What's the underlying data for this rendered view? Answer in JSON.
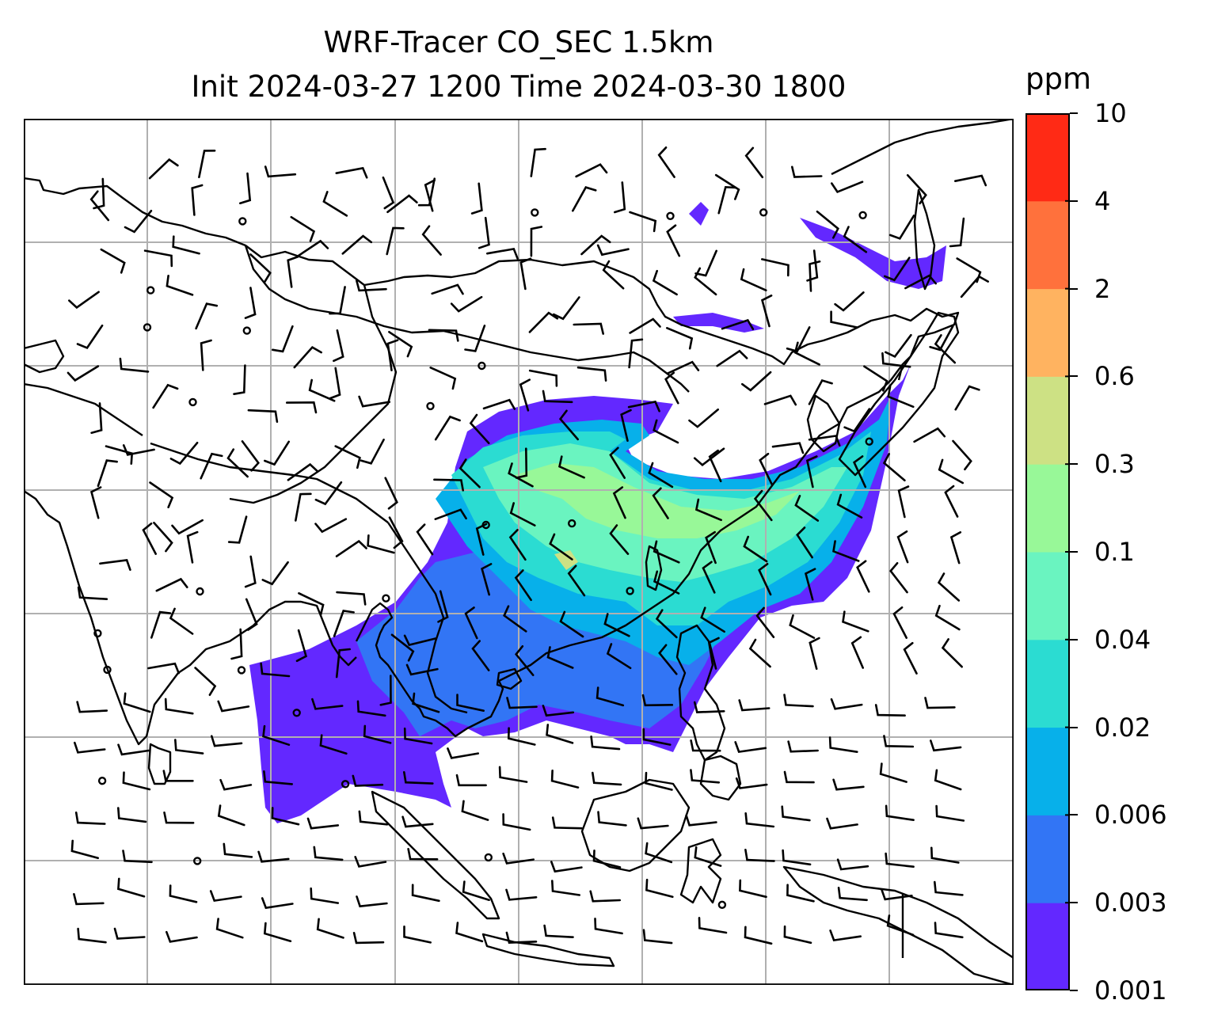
{
  "title": {
    "line1": "WRF-Tracer CO_SEC 1.5km",
    "line2": "Init 2024-03-27 1200 Time 2024-03-30 1800"
  },
  "colorbar": {
    "unit": "ppm",
    "levels": [
      "0.001",
      "0.003",
      "0.006",
      "0.02",
      "0.04",
      "0.1",
      "0.3",
      "0.6",
      "2",
      "4",
      "10"
    ],
    "colors": [
      "#6328ff",
      "#3275f5",
      "#07b0ea",
      "#2bdcd2",
      "#6af4c0",
      "#98f898",
      "#cde184",
      "#ffb360",
      "#ff713c",
      "#ff2a15"
    ]
  },
  "map": {
    "coastline_color": "#000000",
    "gridline_color": "#b0b0b0",
    "barb_color": "#000000"
  }
}
